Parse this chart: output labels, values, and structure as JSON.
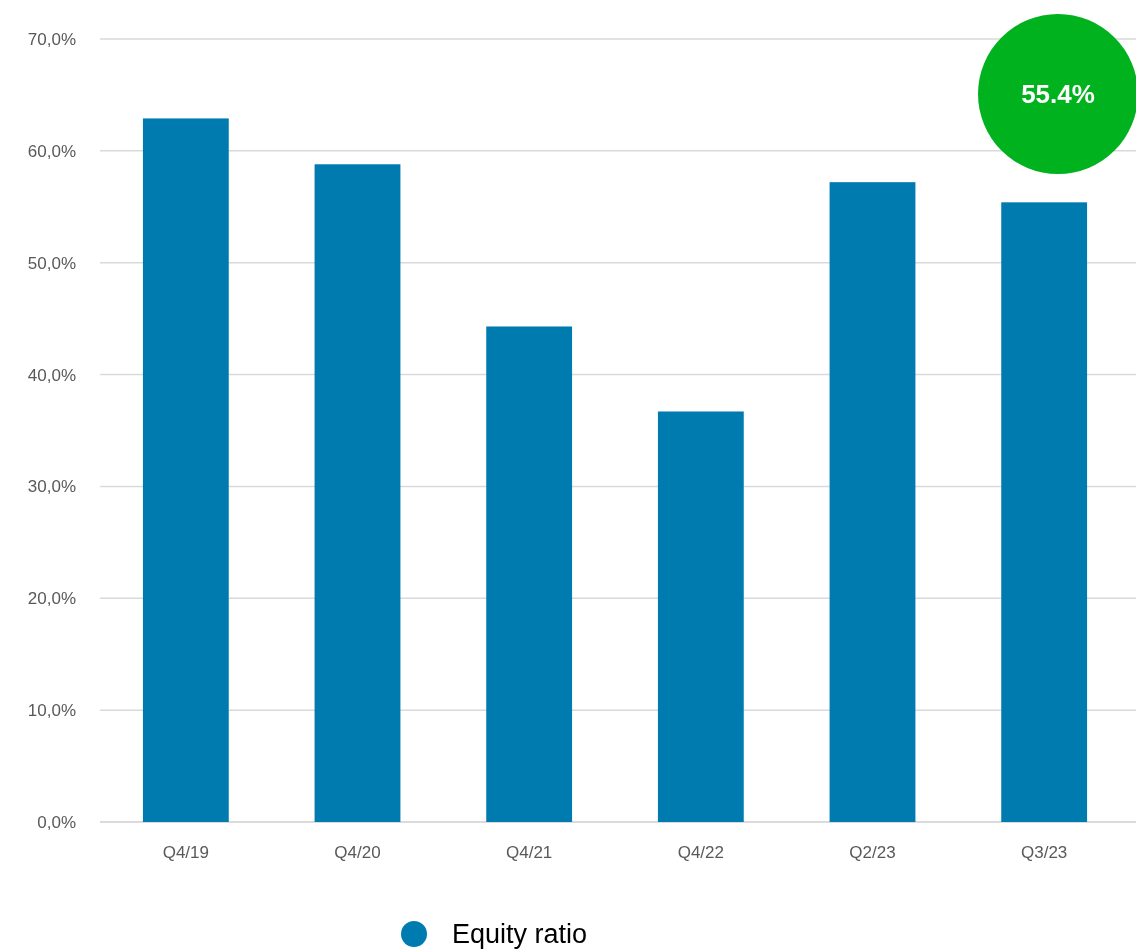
{
  "chart_data": {
    "type": "bar",
    "categories": [
      "Q4/19",
      "Q4/20",
      "Q4/21",
      "Q4/22",
      "Q2/23",
      "Q3/23"
    ],
    "series": [
      {
        "name": "Equity ratio",
        "color": "#007bb0",
        "values": [
          62.9,
          58.8,
          44.3,
          36.7,
          57.2,
          55.4
        ]
      }
    ],
    "ylim": [
      0,
      70
    ],
    "yticks": [
      {
        "value": 0,
        "label": "0,0%"
      },
      {
        "value": 10,
        "label": "10,0%"
      },
      {
        "value": 20,
        "label": "20,0%"
      },
      {
        "value": 30,
        "label": "30,0%"
      },
      {
        "value": 40,
        "label": "40,0%"
      },
      {
        "value": 50,
        "label": "50,0%"
      },
      {
        "value": 60,
        "label": "60,0%"
      },
      {
        "value": 70,
        "label": "70,0%"
      }
    ],
    "grid": "y",
    "legend": "bottom",
    "annotations": [
      "55.4%"
    ]
  }
}
